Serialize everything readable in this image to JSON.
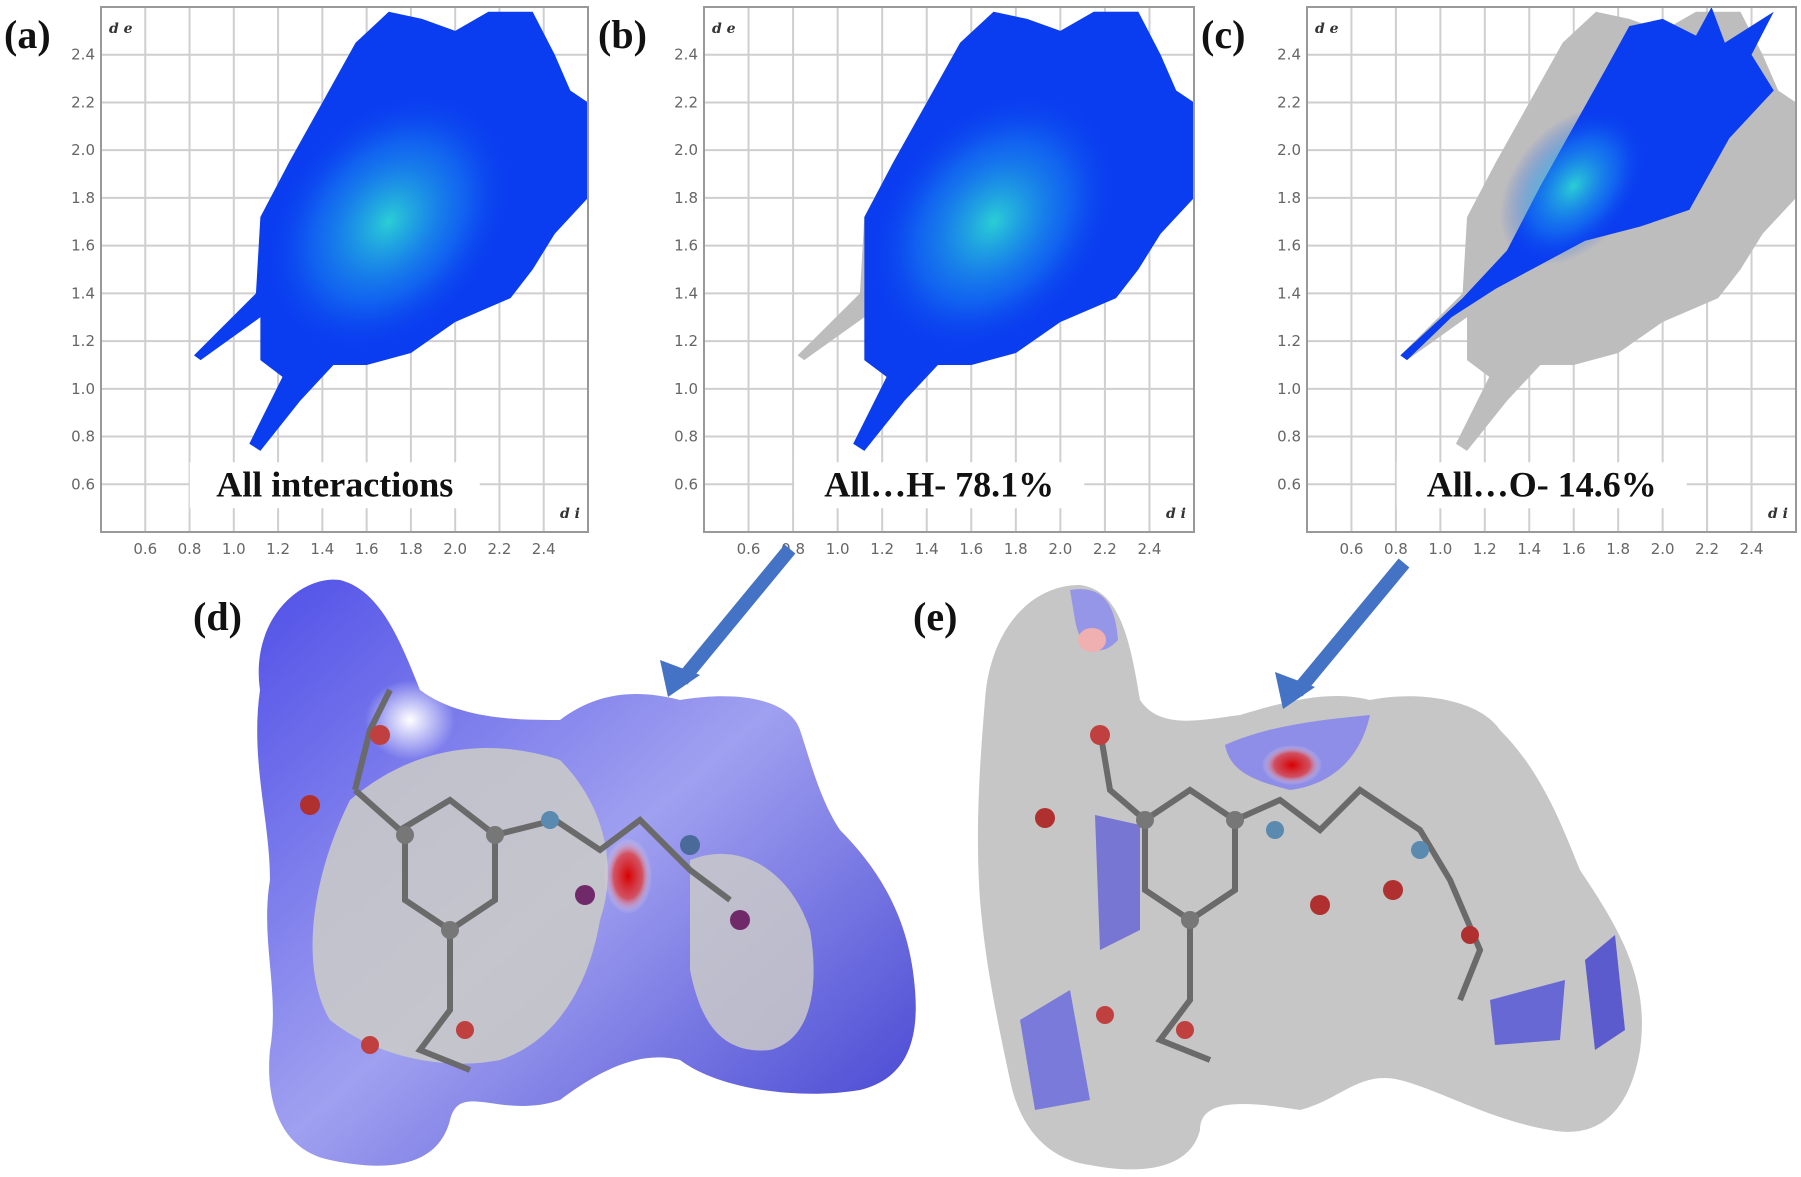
{
  "chart_data": [
    {
      "type": "scatter",
      "panel_label": "(a)",
      "caption": "All interactions",
      "xlabel": "d i",
      "ylabel": "d e",
      "xlim": [
        0.4,
        2.6
      ],
      "ylim": [
        0.4,
        2.6
      ],
      "xticks": [
        "0.6",
        "0.8",
        "1.0",
        "1.2",
        "1.4",
        "1.6",
        "1.8",
        "2.0",
        "2.2",
        "2.4"
      ],
      "yticks": [
        "0.6",
        "0.8",
        "1.0",
        "1.2",
        "1.4",
        "1.6",
        "1.8",
        "2.0",
        "2.2",
        "2.4"
      ],
      "grid": true,
      "colors": {
        "highlight": "#0a3cf0",
        "dense": "#22e0e0",
        "background_points": "#bdbdbd"
      },
      "highlight_region": [
        [
          0.82,
          1.14
        ],
        [
          1.1,
          1.4
        ],
        [
          1.12,
          1.72
        ],
        [
          1.25,
          1.95
        ],
        [
          1.4,
          2.2
        ],
        [
          1.55,
          2.45
        ],
        [
          1.7,
          2.58
        ],
        [
          1.85,
          2.55
        ],
        [
          2.0,
          2.5
        ],
        [
          2.15,
          2.58
        ],
        [
          2.35,
          2.58
        ],
        [
          2.45,
          2.4
        ],
        [
          2.52,
          2.25
        ],
        [
          2.6,
          2.2
        ],
        [
          2.6,
          1.8
        ],
        [
          2.45,
          1.65
        ],
        [
          2.35,
          1.5
        ],
        [
          2.25,
          1.38
        ],
        [
          2.0,
          1.28
        ],
        [
          1.8,
          1.15
        ],
        [
          1.6,
          1.1
        ],
        [
          1.45,
          1.1
        ],
        [
          1.3,
          0.95
        ],
        [
          1.12,
          0.74
        ],
        [
          1.07,
          0.77
        ],
        [
          1.22,
          1.05
        ],
        [
          1.12,
          1.12
        ],
        [
          1.12,
          1.3
        ],
        [
          0.85,
          1.12
        ]
      ],
      "background_region": []
    },
    {
      "type": "scatter",
      "panel_label": "(b)",
      "caption": "All…H- 78.1%",
      "xlabel": "d i",
      "ylabel": "d e",
      "xlim": [
        0.4,
        2.6
      ],
      "ylim": [
        0.4,
        2.6
      ],
      "xticks": [
        "0.6",
        "0.8",
        "1.0",
        "1.2",
        "1.4",
        "1.6",
        "1.8",
        "2.0",
        "2.2",
        "2.4"
      ],
      "yticks": [
        "0.6",
        "0.8",
        "1.0",
        "1.2",
        "1.4",
        "1.6",
        "1.8",
        "2.0",
        "2.2",
        "2.4"
      ],
      "grid": true,
      "colors": {
        "highlight": "#0a3cf0",
        "dense": "#22e0e0",
        "background_points": "#bdbdbd"
      },
      "highlight_region": [
        [
          1.12,
          1.45
        ],
        [
          1.12,
          1.72
        ],
        [
          1.25,
          1.95
        ],
        [
          1.4,
          2.2
        ],
        [
          1.55,
          2.45
        ],
        [
          1.7,
          2.58
        ],
        [
          1.85,
          2.55
        ],
        [
          2.0,
          2.5
        ],
        [
          2.15,
          2.58
        ],
        [
          2.35,
          2.58
        ],
        [
          2.45,
          2.4
        ],
        [
          2.52,
          2.25
        ],
        [
          2.6,
          2.2
        ],
        [
          2.6,
          1.8
        ],
        [
          2.45,
          1.65
        ],
        [
          2.35,
          1.5
        ],
        [
          2.25,
          1.38
        ],
        [
          2.0,
          1.28
        ],
        [
          1.8,
          1.15
        ],
        [
          1.6,
          1.1
        ],
        [
          1.45,
          1.1
        ],
        [
          1.3,
          0.95
        ],
        [
          1.12,
          0.74
        ],
        [
          1.07,
          0.77
        ],
        [
          1.22,
          1.05
        ],
        [
          1.12,
          1.12
        ],
        [
          1.12,
          1.3
        ]
      ],
      "background_region": [
        [
          0.82,
          1.14
        ],
        [
          1.1,
          1.4
        ],
        [
          1.12,
          1.72
        ],
        [
          1.25,
          1.95
        ],
        [
          1.4,
          2.2
        ],
        [
          1.55,
          2.45
        ],
        [
          1.7,
          2.58
        ],
        [
          1.85,
          2.55
        ],
        [
          2.0,
          2.5
        ],
        [
          2.15,
          2.58
        ],
        [
          2.35,
          2.58
        ],
        [
          2.45,
          2.4
        ],
        [
          2.52,
          2.25
        ],
        [
          2.6,
          2.2
        ],
        [
          2.6,
          1.8
        ],
        [
          2.45,
          1.65
        ],
        [
          2.35,
          1.5
        ],
        [
          2.25,
          1.38
        ],
        [
          2.0,
          1.28
        ],
        [
          1.8,
          1.15
        ],
        [
          1.6,
          1.1
        ],
        [
          1.45,
          1.1
        ],
        [
          1.3,
          0.95
        ],
        [
          1.12,
          0.74
        ],
        [
          1.07,
          0.77
        ],
        [
          1.22,
          1.05
        ],
        [
          1.12,
          1.12
        ],
        [
          1.12,
          1.3
        ],
        [
          0.85,
          1.12
        ]
      ]
    },
    {
      "type": "scatter",
      "panel_label": "(c)",
      "caption": "All…O- 14.6%",
      "xlabel": "d i",
      "ylabel": "d e",
      "xlim": [
        0.4,
        2.6
      ],
      "ylim": [
        0.4,
        2.6
      ],
      "xticks": [
        "0.6",
        "0.8",
        "1.0",
        "1.2",
        "1.4",
        "1.6",
        "1.8",
        "2.0",
        "2.2",
        "2.4"
      ],
      "yticks": [
        "0.6",
        "0.8",
        "1.0",
        "1.2",
        "1.4",
        "1.6",
        "1.8",
        "2.0",
        "2.2",
        "2.4"
      ],
      "grid": true,
      "colors": {
        "highlight": "#0a3cf0",
        "dense": "#22e0e0",
        "background_points": "#bdbdbd"
      },
      "highlight_region": [
        [
          0.82,
          1.14
        ],
        [
          1.1,
          1.38
        ],
        [
          1.3,
          1.58
        ],
        [
          1.45,
          1.85
        ],
        [
          1.6,
          2.1
        ],
        [
          1.75,
          2.35
        ],
        [
          1.85,
          2.52
        ],
        [
          2.0,
          2.55
        ],
        [
          2.15,
          2.48
        ],
        [
          2.22,
          2.6
        ],
        [
          2.28,
          2.45
        ],
        [
          2.5,
          2.58
        ],
        [
          2.4,
          2.4
        ],
        [
          2.5,
          2.25
        ],
        [
          2.3,
          2.05
        ],
        [
          2.12,
          1.75
        ],
        [
          1.9,
          1.68
        ],
        [
          1.65,
          1.62
        ],
        [
          1.45,
          1.52
        ],
        [
          1.25,
          1.42
        ],
        [
          1.05,
          1.3
        ],
        [
          0.85,
          1.12
        ]
      ],
      "background_region": [
        [
          0.82,
          1.14
        ],
        [
          1.1,
          1.4
        ],
        [
          1.12,
          1.72
        ],
        [
          1.25,
          1.95
        ],
        [
          1.4,
          2.2
        ],
        [
          1.55,
          2.45
        ],
        [
          1.7,
          2.58
        ],
        [
          1.85,
          2.55
        ],
        [
          2.0,
          2.5
        ],
        [
          2.15,
          2.58
        ],
        [
          2.35,
          2.58
        ],
        [
          2.45,
          2.4
        ],
        [
          2.52,
          2.25
        ],
        [
          2.6,
          2.2
        ],
        [
          2.6,
          1.8
        ],
        [
          2.45,
          1.65
        ],
        [
          2.35,
          1.5
        ],
        [
          2.25,
          1.38
        ],
        [
          2.0,
          1.28
        ],
        [
          1.8,
          1.15
        ],
        [
          1.6,
          1.1
        ],
        [
          1.45,
          1.1
        ],
        [
          1.3,
          0.95
        ],
        [
          1.12,
          0.74
        ],
        [
          1.07,
          0.77
        ],
        [
          1.22,
          1.05
        ],
        [
          1.12,
          1.12
        ],
        [
          1.12,
          1.3
        ],
        [
          0.85,
          1.12
        ]
      ]
    }
  ],
  "surfaces": [
    {
      "panel_label": "(d)",
      "colors": {
        "surface": "#c8c8c8",
        "contact_blue": "#4646e0",
        "contact_red": "#d01818"
      }
    },
    {
      "panel_label": "(e)",
      "colors": {
        "surface": "#c8c8c8",
        "contact_blue": "#4646e0",
        "contact_red": "#e01818"
      }
    }
  ],
  "arrow_color": "#4472c4"
}
